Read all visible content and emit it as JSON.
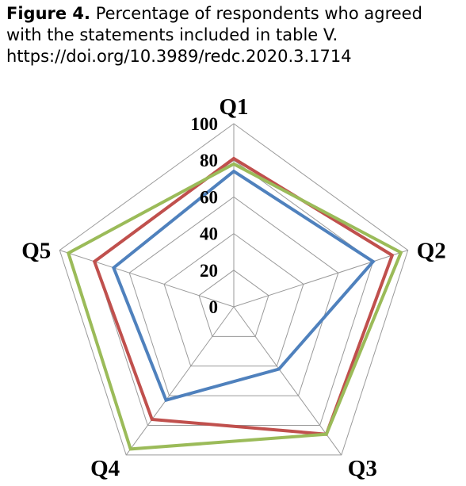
{
  "caption": {
    "figure_label": "Figure 4.",
    "text": "Percentage of respondents who agreed with the statements included in table V.",
    "doi": "https://doi.org/10.3989/redc.2020.3.1714"
  },
  "chart_data": {
    "type": "radar",
    "title": "",
    "categories": [
      "Q1",
      "Q2",
      "Q3",
      "Q4",
      "Q5"
    ],
    "ticks": [
      0,
      20,
      40,
      60,
      80,
      100
    ],
    "range": [
      0,
      100
    ],
    "grid": true,
    "legend": "none",
    "series": [
      {
        "color": "#4f81bd",
        "values": [
          74,
          80,
          42,
          63,
          69
        ]
      },
      {
        "color": "#c0504d",
        "values": [
          81,
          91,
          86,
          76,
          80
        ]
      },
      {
        "color": "#9bbb59",
        "values": [
          78,
          96,
          86,
          96,
          95
        ]
      }
    ]
  }
}
